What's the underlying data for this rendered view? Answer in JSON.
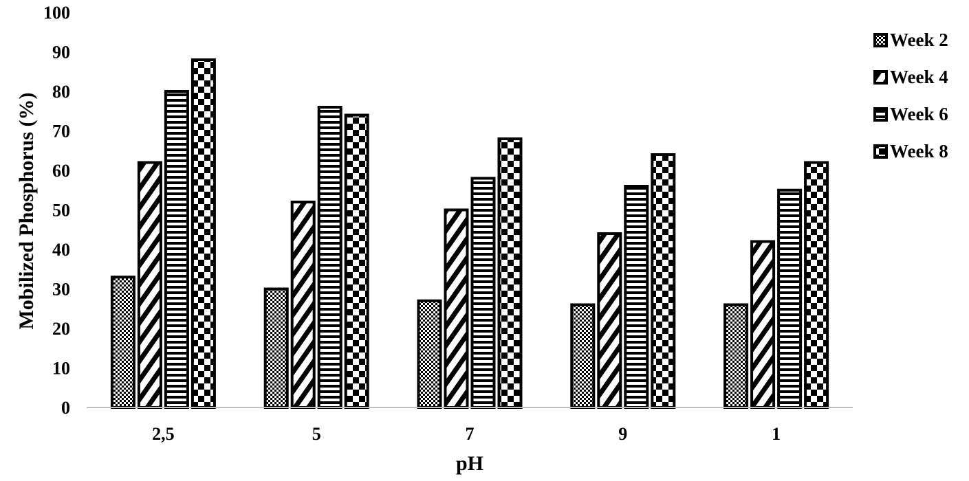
{
  "chart_data": {
    "type": "bar",
    "title": "",
    "xlabel": "pH",
    "ylabel": "Mobilized Phosphorus (%)",
    "categories": [
      "2,5",
      "5",
      "7",
      "9",
      "1"
    ],
    "ylim": [
      0,
      100
    ],
    "yticks": [
      0,
      10,
      20,
      30,
      40,
      50,
      60,
      70,
      80,
      90,
      100
    ],
    "grid": false,
    "legend_position": "right",
    "series": [
      {
        "name": "Week 2",
        "pattern": "checker-fine",
        "values": [
          33,
          30,
          27,
          26,
          26
        ]
      },
      {
        "name": "Week 4",
        "pattern": "diagonal",
        "values": [
          62,
          52,
          50,
          44,
          42
        ]
      },
      {
        "name": "Week 6",
        "pattern": "horizontal",
        "values": [
          80,
          76,
          58,
          56,
          55
        ]
      },
      {
        "name": "Week 8",
        "pattern": "checker-large",
        "values": [
          88,
          74,
          68,
          64,
          62
        ]
      }
    ],
    "colors": {
      "ink": "#000000",
      "background": "#ffffff",
      "axis": "#bfbfbf"
    }
  }
}
